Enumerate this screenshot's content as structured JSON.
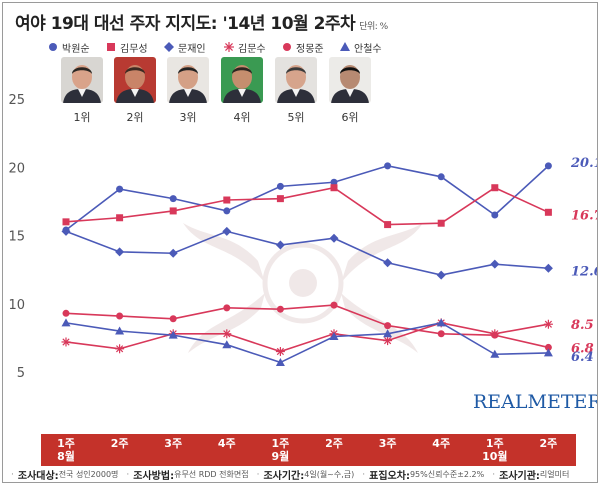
{
  "title": "여야 19대 대선 주자 지지도: '14년 10월 2주차",
  "unit": "단위: %",
  "brand": "REALMETER",
  "colors": {
    "blue": "#4b5ab8",
    "red": "#d8385a",
    "band": "#c4322a"
  },
  "legend": [
    {
      "name": "박원순",
      "marker": "circle",
      "color": "#4b5ab8"
    },
    {
      "name": "김무성",
      "marker": "square",
      "color": "#d8385a"
    },
    {
      "name": "문재인",
      "marker": "diamond",
      "color": "#4b5ab8"
    },
    {
      "name": "김문수",
      "marker": "asterisk",
      "color": "#d8385a"
    },
    {
      "name": "정몽준",
      "marker": "circle",
      "color": "#d8385a"
    },
    {
      "name": "안철수",
      "marker": "triangle",
      "color": "#4b5ab8"
    }
  ],
  "ranks": [
    "1위",
    "2위",
    "3위",
    "4위",
    "5위",
    "6위"
  ],
  "portraits": [
    "portrait-1",
    "portrait-2",
    "portrait-3",
    "portrait-4",
    "portrait-5",
    "portrait-6"
  ],
  "xticks": [
    {
      "week": "1주",
      "month": "8월"
    },
    {
      "week": "2주",
      "month": ""
    },
    {
      "week": "3주",
      "month": ""
    },
    {
      "week": "4주",
      "month": ""
    },
    {
      "week": "1주",
      "month": "9월"
    },
    {
      "week": "2주",
      "month": ""
    },
    {
      "week": "3주",
      "month": ""
    },
    {
      "week": "4주",
      "month": ""
    },
    {
      "week": "1주",
      "month": "10월"
    },
    {
      "week": "2주",
      "month": ""
    }
  ],
  "footer": [
    {
      "label": "조사대상:",
      "value": "전국 성인2000명"
    },
    {
      "label": "조사방법:",
      "value": "유무선 RDD 전화면접"
    },
    {
      "label": "조사기간:",
      "value": "4일(월~수,금)"
    },
    {
      "label": "표집오차:",
      "value": "95%신뢰수준±2.2%"
    },
    {
      "label": "조사기관:",
      "value": "리얼미터"
    }
  ],
  "chart_data": {
    "type": "line",
    "title": "여야 19대 대선 주자 지지도: '14년 10월 2주차",
    "xlabel": "",
    "ylabel": "",
    "ylim": [
      5,
      25
    ],
    "yticks": [
      5,
      10,
      15,
      20,
      25
    ],
    "grid": false,
    "categories": [
      "8월 1주",
      "8월 2주",
      "8월 3주",
      "8월 4주",
      "9월 1주",
      "9월 2주",
      "9월 3주",
      "9월 4주",
      "10월 1주",
      "10월 2주"
    ],
    "series": [
      {
        "name": "박원순",
        "color": "#4b5ab8",
        "marker": "circle",
        "values": [
          15.4,
          18.4,
          17.7,
          16.8,
          18.6,
          18.9,
          20.1,
          19.3,
          16.5,
          20.1
        ],
        "end_label": "20.1"
      },
      {
        "name": "김무성",
        "color": "#d8385a",
        "marker": "square",
        "values": [
          16.0,
          16.3,
          16.8,
          17.6,
          17.7,
          18.5,
          15.8,
          15.9,
          18.5,
          16.7
        ],
        "end_label": "16.7"
      },
      {
        "name": "문재인",
        "color": "#4b5ab8",
        "marker": "diamond",
        "values": [
          15.3,
          13.8,
          13.7,
          15.3,
          14.3,
          14.8,
          13.0,
          12.1,
          12.9,
          12.6
        ],
        "end_label": "12.6"
      },
      {
        "name": "김문수",
        "color": "#d8385a",
        "marker": "asterisk",
        "values": [
          7.2,
          6.7,
          7.8,
          7.8,
          6.5,
          7.8,
          7.3,
          8.6,
          7.8,
          8.5
        ],
        "end_label": "8.5"
      },
      {
        "name": "정몽준",
        "color": "#d8385a",
        "marker": "circle",
        "values": [
          9.3,
          9.1,
          8.9,
          9.7,
          9.6,
          9.9,
          8.4,
          7.8,
          7.7,
          6.8
        ],
        "end_label": "6.8"
      },
      {
        "name": "안철수",
        "color": "#4b5ab8",
        "marker": "triangle",
        "values": [
          8.6,
          8.0,
          7.7,
          7.0,
          5.7,
          7.6,
          7.8,
          8.6,
          6.3,
          6.4
        ],
        "end_label": "6.4"
      }
    ]
  }
}
